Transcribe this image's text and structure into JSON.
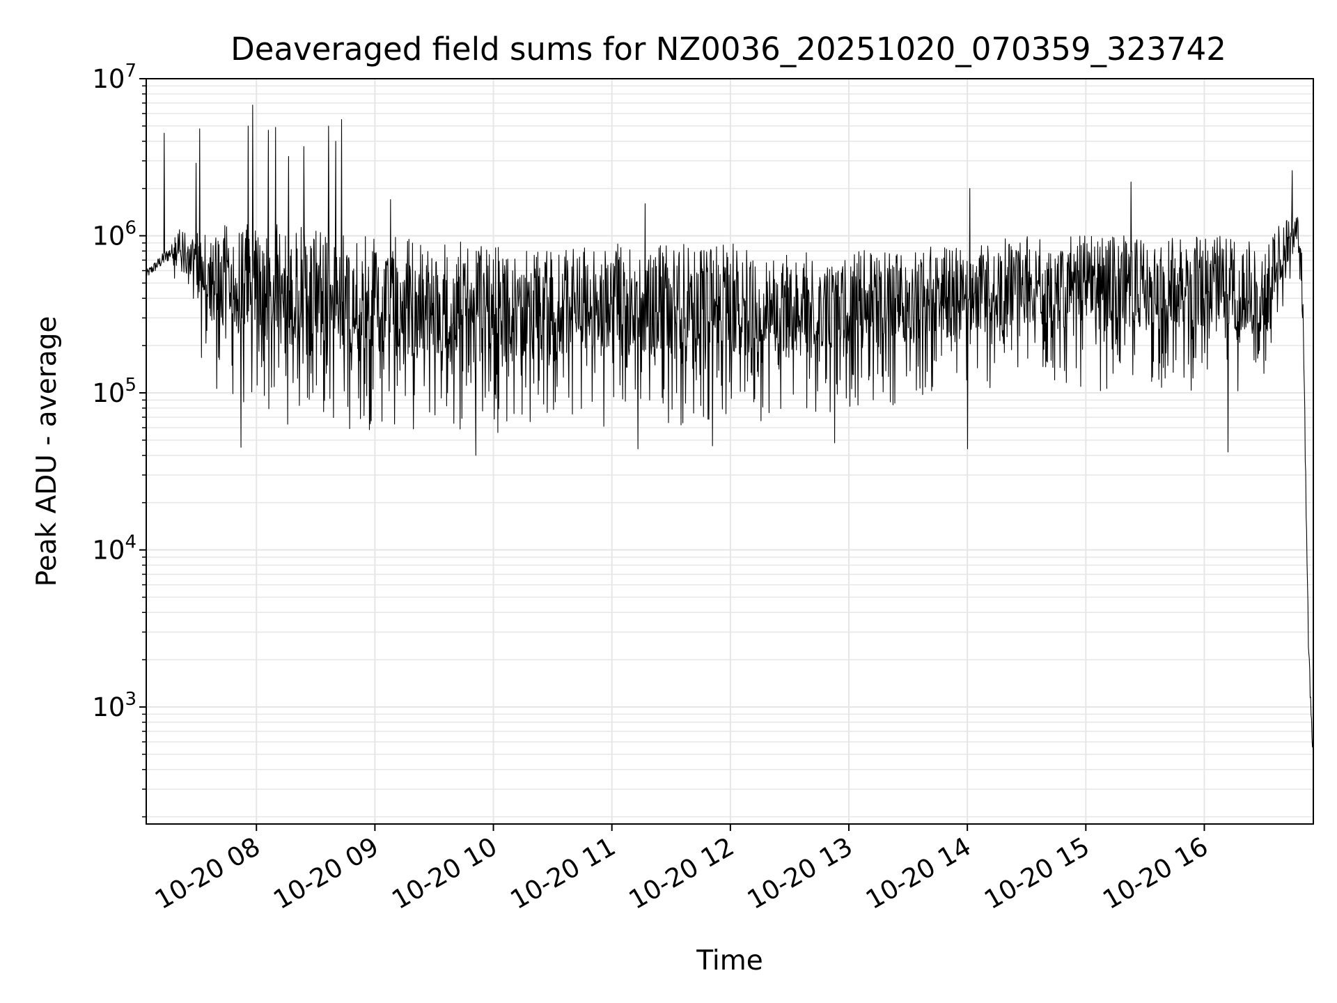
{
  "chart_data": {
    "type": "line",
    "title": "Deaveraged field sums for NZ0036_20251020_070359_323742",
    "xlabel": "Time",
    "ylabel": "Peak ADU - average",
    "yscale": "log",
    "ylim": [
      180,
      10000000
    ],
    "xlim_hours": [
      7.07,
      16.92
    ],
    "grid": true,
    "colors": {
      "line": "#000000",
      "grid": "#e6e6e6",
      "axes": "#000000",
      "background": "#ffffff"
    },
    "x_ticks": [
      {
        "hour": 8,
        "label": "10-20 08"
      },
      {
        "hour": 9,
        "label": "10-20 09"
      },
      {
        "hour": 10,
        "label": "10-20 10"
      },
      {
        "hour": 11,
        "label": "10-20 11"
      },
      {
        "hour": 12,
        "label": "10-20 12"
      },
      {
        "hour": 13,
        "label": "10-20 13"
      },
      {
        "hour": 14,
        "label": "10-20 14"
      },
      {
        "hour": 15,
        "label": "10-20 15"
      },
      {
        "hour": 16,
        "label": "10-20 16"
      }
    ],
    "y_ticks": [
      {
        "value": 1000,
        "base": "10",
        "exp": "3"
      },
      {
        "value": 10000,
        "base": "10",
        "exp": "4"
      },
      {
        "value": 100000,
        "base": "10",
        "exp": "5"
      },
      {
        "value": 1000000,
        "base": "10",
        "exp": "6"
      },
      {
        "value": 10000000,
        "base": "10",
        "exp": "7"
      }
    ],
    "series": [
      {
        "name": "Peak ADU - average",
        "approximate": true,
        "envelope": [
          {
            "hour": 7.07,
            "low": 460000,
            "high": 700000
          },
          {
            "hour": 7.3,
            "low": 550000,
            "high": 1200000
          },
          {
            "hour": 7.45,
            "low": 270000,
            "high": 1000000
          },
          {
            "hour": 7.6,
            "low": 110000,
            "high": 1200000
          },
          {
            "hour": 8.0,
            "low": 60000,
            "high": 1200000
          },
          {
            "hour": 8.3,
            "low": 60000,
            "high": 1200000
          },
          {
            "hour": 8.7,
            "low": 55000,
            "high": 1100000
          },
          {
            "hour": 9.0,
            "low": 55000,
            "high": 1000000
          },
          {
            "hour": 9.5,
            "low": 52000,
            "high": 950000
          },
          {
            "hour": 10.0,
            "low": 55000,
            "high": 900000
          },
          {
            "hour": 10.5,
            "low": 58000,
            "high": 850000
          },
          {
            "hour": 11.0,
            "low": 60000,
            "high": 900000
          },
          {
            "hour": 11.5,
            "low": 60000,
            "high": 950000
          },
          {
            "hour": 12.0,
            "low": 60000,
            "high": 900000
          },
          {
            "hour": 12.5,
            "low": 70000,
            "high": 800000
          },
          {
            "hour": 13.0,
            "low": 75000,
            "high": 800000
          },
          {
            "hour": 13.5,
            "low": 85000,
            "high": 850000
          },
          {
            "hour": 14.0,
            "low": 95000,
            "high": 900000
          },
          {
            "hour": 14.5,
            "low": 100000,
            "high": 1000000
          },
          {
            "hour": 15.0,
            "low": 100000,
            "high": 1000000
          },
          {
            "hour": 15.5,
            "low": 100000,
            "high": 1000000
          },
          {
            "hour": 16.0,
            "low": 100000,
            "high": 1000000
          },
          {
            "hour": 16.5,
            "low": 100000,
            "high": 1000000
          },
          {
            "hour": 16.7,
            "low": 350000,
            "high": 1400000
          },
          {
            "hour": 16.78,
            "low": 700000,
            "high": 1500000
          },
          {
            "hour": 16.82,
            "low": 300000,
            "high": 900000
          },
          {
            "hour": 16.85,
            "low": 20000,
            "high": 150000
          },
          {
            "hour": 16.88,
            "low": 1200,
            "high": 4000
          },
          {
            "hour": 16.92,
            "low": 300,
            "high": 700
          }
        ],
        "spikes": [
          {
            "hour": 7.22,
            "value": 4500000
          },
          {
            "hour": 7.49,
            "value": 2900000
          },
          {
            "hour": 7.52,
            "value": 4800000
          },
          {
            "hour": 7.93,
            "value": 5000000
          },
          {
            "hour": 7.97,
            "value": 6800000
          },
          {
            "hour": 8.1,
            "value": 4700000
          },
          {
            "hour": 8.16,
            "value": 4900000
          },
          {
            "hour": 8.27,
            "value": 3200000
          },
          {
            "hour": 8.4,
            "value": 3700000
          },
          {
            "hour": 8.61,
            "value": 5000000
          },
          {
            "hour": 8.67,
            "value": 4000000
          },
          {
            "hour": 8.72,
            "value": 5500000
          },
          {
            "hour": 9.13,
            "value": 1700000
          },
          {
            "hour": 11.28,
            "value": 1600000
          },
          {
            "hour": 14.02,
            "value": 2000000
          },
          {
            "hour": 15.38,
            "value": 2200000
          },
          {
            "hour": 16.74,
            "value": 2600000
          }
        ],
        "dips": [
          {
            "hour": 7.87,
            "value": 45000
          },
          {
            "hour": 9.85,
            "value": 40000
          },
          {
            "hour": 11.22,
            "value": 44000
          },
          {
            "hour": 11.85,
            "value": 46000
          },
          {
            "hour": 12.88,
            "value": 48000
          },
          {
            "hour": 14.0,
            "value": 44000
          },
          {
            "hour": 16.2,
            "value": 42000
          }
        ]
      }
    ]
  }
}
